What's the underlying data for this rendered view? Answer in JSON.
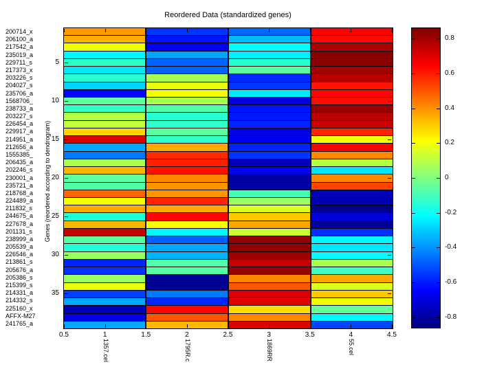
{
  "title": "Reordered Data (standardized genes)",
  "chart_data": {
    "type": "heatmap",
    "title": "Reordered Data (standardized genes)",
    "ylabel": "Genes (reordered according to dendrogram)",
    "xlabel": "",
    "colormap": "jet",
    "grid": false,
    "columns": [
      "1357.cel",
      "1795R.c",
      "1869RR",
      "55.cel"
    ],
    "column_x_positions": [
      1,
      2,
      3,
      4
    ],
    "x_ticks": [
      "0.5",
      "1",
      "1.5",
      "2",
      "2.5",
      "3",
      "3.5",
      "4",
      "4.5"
    ],
    "x_tick_values": [
      0.5,
      1,
      1.5,
      2,
      2.5,
      3,
      3.5,
      4,
      4.5
    ],
    "x_range": [
      0.5,
      4.5
    ],
    "y_ticks": [
      "5",
      "10",
      "15",
      "20",
      "25",
      "30",
      "35"
    ],
    "y_tick_values": [
      5,
      10,
      15,
      20,
      25,
      30,
      35
    ],
    "y_range": [
      0.5,
      39.5
    ],
    "rows": [
      "200714_x",
      "206100_a",
      "217542_a",
      "235019_a",
      "229711_s",
      "217373_x",
      "203226_s",
      "204027_s",
      "235706_a",
      "1568706_",
      "238733_a",
      "203227_s",
      "226454_a",
      "229917_a",
      "214951_a",
      "212656_a",
      "1555385_",
      "206435_a",
      "202246_s",
      "230001_a",
      "235721_a",
      "218768_a",
      "224489_a",
      "211832_s",
      "244675_a",
      "227678_a",
      "201131_s",
      "238999_a",
      "205539_a",
      "226546_a",
      "213861_s",
      "205676_a",
      "205386_s",
      "215399_s",
      "214331_a",
      "214332_s",
      "225160_x",
      "AFFX-M27",
      "241765_a"
    ],
    "cells": [
      [
        "#FF9900",
        "#0033FF",
        "#0066FF",
        "#FF0000"
      ],
      [
        "#FFAE00",
        "#0011FF",
        "#00BBFF",
        "#FF0800"
      ],
      [
        "#EFFF00",
        "#0000F0",
        "#00FFFF",
        "#AA0000"
      ],
      [
        "#00F7FF",
        "#00A4FF",
        "#00EEFF",
        "#870000"
      ],
      [
        "#30FFC8",
        "#0063FF",
        "#25FFD2",
        "#8B0000"
      ],
      [
        "#00E8FF",
        "#0063FF",
        "#58FFA0",
        "#A40000"
      ],
      [
        "#28FFD0",
        "#A8FF50",
        "#0028FF",
        "#B80000"
      ],
      [
        "#00D4FF",
        "#E8FF10",
        "#0034FF",
        "#FF1400"
      ],
      [
        "#0004FF",
        "#F2FF00",
        "#00E8FF",
        "#FF0400"
      ],
      [
        "#60FFA0",
        "#A8FF50",
        "#0000DC",
        "#FF0C00"
      ],
      [
        "#34FFC4",
        "#50FFA8",
        "#0014FF",
        "#970000"
      ],
      [
        "#B8FF40",
        "#28FFD0",
        "#0018FF",
        "#BB0000"
      ],
      [
        "#C0FF38",
        "#30FFC8",
        "#0024FF",
        "#C80000"
      ],
      [
        "#FFD400",
        "#5CFFA0",
        "#0000E4",
        "#FF2400"
      ],
      [
        "#DC0000",
        "#30FFC8",
        "#0000F0",
        "#EEFF08"
      ],
      [
        "#00A8FF",
        "#FFA800",
        "#0024FF",
        "#FF0000"
      ],
      [
        "#0078FF",
        "#FF2800",
        "#0034FF",
        "#FF8800"
      ],
      [
        "#A8FF50",
        "#FF2000",
        "#0000BC",
        "#B4FF44"
      ],
      [
        "#FFB400",
        "#FF1000",
        "#0000EC",
        "#00E4FF"
      ],
      [
        "#5CFFA0",
        "#FF8800",
        "#0000A8",
        "#FF8800"
      ],
      [
        "#50FFA8",
        "#FF9400",
        "#0000A8",
        "#FF4400"
      ],
      [
        "#FF6400",
        "#FF9800",
        "#40FFB8",
        "#0000B4"
      ],
      [
        "#F4FF04",
        "#FF2400",
        "#98FF60",
        "#0000B4"
      ],
      [
        "#FFA800",
        "#FFA800",
        "#D8FF20",
        "#000090"
      ],
      [
        "#20FFD8",
        "#FF0400",
        "#FFC800",
        "#0000D8"
      ],
      [
        "#FFB400",
        "#FAFF00",
        "#FFA400",
        "#000098"
      ],
      [
        "#C80000",
        "#00F8FF",
        "#C8FF30",
        "#0030FF"
      ],
      [
        "#54FFA4",
        "#0060FF",
        "#940000",
        "#00F8FF"
      ],
      [
        "#24FFD4",
        "#00A8FF",
        "#940000",
        "#00E8FF"
      ],
      [
        "#98FF60",
        "#00B4FF",
        "#A00000",
        "#00FCFF"
      ],
      [
        "#0024FF",
        "#50FFA8",
        "#C40000",
        "#A8FF50"
      ],
      [
        "#0030FF",
        "#54FFA4",
        "#980000",
        "#3CFFC0"
      ],
      [
        "#98FF60",
        "#000094",
        "#FF8400",
        "#FFA800"
      ],
      [
        "#ECFF0C",
        "#000094",
        "#FF5400",
        "#DCFF1C"
      ],
      [
        "#0040FF",
        "#0078FF",
        "#DC0000",
        "#FFC800"
      ],
      [
        "#00A8FF",
        "#0028FF",
        "#DC0000",
        "#EEFF08"
      ],
      [
        "#0000B8",
        "#FF0400",
        "#FFDC00",
        "#64FF98"
      ],
      [
        "#0000EE",
        "#FF5400",
        "#FF8800",
        "#00F8FF"
      ],
      [
        "#00A8FF",
        "#FFB800",
        "#D80000",
        "#0044FF"
      ]
    ],
    "colorbar": {
      "ticks": [
        "0.8",
        "0.6",
        "0.4",
        "0.2",
        "0",
        "-0.2",
        "-0.4",
        "-0.6",
        "-0.8"
      ],
      "tick_values": [
        0.8,
        0.6,
        0.4,
        0.2,
        0,
        -0.2,
        -0.4,
        -0.6,
        -0.8
      ],
      "range": [
        -0.86,
        0.86
      ],
      "top_color": "#7F0000",
      "bottom_color": "#00007F",
      "position": "right"
    }
  }
}
